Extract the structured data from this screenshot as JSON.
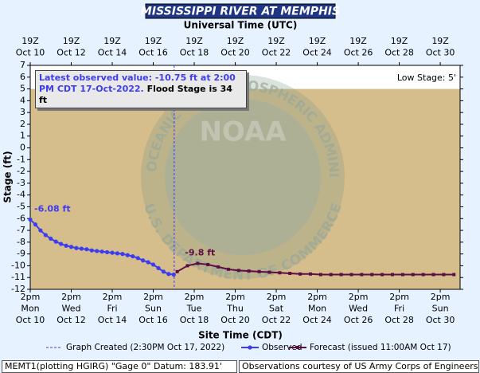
{
  "chart_data": {
    "type": "line",
    "title": "MISSISSIPPI RIVER AT MEMPHIS",
    "x2_label": "Universal Time (UTC)",
    "x_label": "Site Time (CDT)",
    "y_label": "Stage (ft)",
    "xlim": [
      10.583,
      31.55
    ],
    "ylim": [
      -12,
      7
    ],
    "yticks": [
      7,
      6,
      5,
      4,
      3,
      2,
      1,
      0,
      -1,
      -2,
      -3,
      -4,
      -5,
      -6,
      -7,
      -8,
      -9,
      -10,
      -11,
      -12
    ],
    "xticks": [
      {
        "value": 10.583,
        "label": "2pm\nMon\nOct 10"
      },
      {
        "value": 12.583,
        "label": "2pm\nWed\nOct 12"
      },
      {
        "value": 14.583,
        "label": "2pm\nFri\nOct 14"
      },
      {
        "value": 16.583,
        "label": "2pm\nSun\nOct 16"
      },
      {
        "value": 18.583,
        "label": "2pm\nTue\nOct 18"
      },
      {
        "value": 20.583,
        "label": "2pm\nThu\nOct 20"
      },
      {
        "value": 22.583,
        "label": "2pm\nSat\nOct 22"
      },
      {
        "value": 24.583,
        "label": "2pm\nMon\nOct 24"
      },
      {
        "value": 26.583,
        "label": "2pm\nWed\nOct 26"
      },
      {
        "value": 28.583,
        "label": "2pm\nFri\nOct 28"
      },
      {
        "value": 30.583,
        "label": "2pm\nSun\nOct 30"
      }
    ],
    "x2ticks": [
      {
        "value": 10.583,
        "label": "19Z\nOct 10"
      },
      {
        "value": 12.583,
        "label": "19Z\nOct 12"
      },
      {
        "value": 14.583,
        "label": "19Z\nOct 14"
      },
      {
        "value": 16.583,
        "label": "19Z\nOct 16"
      },
      {
        "value": 18.583,
        "label": "19Z\nOct 18"
      },
      {
        "value": 20.583,
        "label": "19Z\nOct 20"
      },
      {
        "value": 22.583,
        "label": "19Z\nOct 22"
      },
      {
        "value": 24.583,
        "label": "19Z\nOct 24"
      },
      {
        "value": 26.583,
        "label": "19Z\nOct 26"
      },
      {
        "value": 28.583,
        "label": "19Z\nOct 28"
      },
      {
        "value": 30.583,
        "label": "19Z\nOct 30"
      }
    ],
    "grid": false,
    "band": {
      "from": -12,
      "to": 5,
      "color": "#d6bd8c",
      "label": "Low Stage: 5'"
    },
    "created": {
      "x": 17.604,
      "label": "Graph Created (2:30PM Oct 17, 2022)",
      "color": "#3c3cf0"
    },
    "series": [
      {
        "name": "Observed",
        "color": "#3c3cf0",
        "marker": "circle",
        "x": [
          10.583,
          10.833,
          11.083,
          11.333,
          11.583,
          11.833,
          12.083,
          12.333,
          12.583,
          12.833,
          13.083,
          13.333,
          13.583,
          13.833,
          14.083,
          14.333,
          14.583,
          14.833,
          15.083,
          15.333,
          15.583,
          15.833,
          16.083,
          16.333,
          16.583,
          16.833,
          17.083,
          17.333,
          17.583
        ],
        "values": [
          -6.08,
          -6.5,
          -7.0,
          -7.4,
          -7.7,
          -7.95,
          -8.15,
          -8.3,
          -8.4,
          -8.5,
          -8.55,
          -8.6,
          -8.7,
          -8.75,
          -8.8,
          -8.85,
          -8.9,
          -8.95,
          -9.0,
          -9.1,
          -9.2,
          -9.35,
          -9.55,
          -9.7,
          -9.9,
          -10.2,
          -10.5,
          -10.7,
          -10.75
        ],
        "value_labels": [
          "-6.08 ft",
          null,
          null,
          null,
          null,
          null,
          null,
          null,
          null,
          null,
          null,
          null,
          null,
          null,
          null,
          null,
          null,
          null,
          null,
          null,
          null,
          null,
          null,
          null,
          null,
          null,
          null,
          null,
          null
        ]
      },
      {
        "name": "Forecast (issued 11:00AM Oct 17)",
        "color": "#5c0e44",
        "marker": "square",
        "x": [
          17.75,
          18.25,
          18.75,
          19.25,
          19.75,
          20.25,
          20.75,
          21.25,
          21.75,
          22.25,
          22.75,
          23.25,
          23.75,
          24.25,
          24.75,
          25.25,
          25.75,
          26.25,
          26.75,
          27.25,
          27.75,
          28.25,
          28.75,
          29.25,
          29.75,
          30.25,
          30.75,
          31.25
        ],
        "values": [
          -10.5,
          -10.0,
          -9.8,
          -9.9,
          -10.1,
          -10.3,
          -10.4,
          -10.45,
          -10.5,
          -10.55,
          -10.6,
          -10.65,
          -10.7,
          -10.7,
          -10.75,
          -10.75,
          -10.75,
          -10.75,
          -10.75,
          -10.75,
          -10.75,
          -10.75,
          -10.75,
          -10.75,
          -10.75,
          -10.75,
          -10.75,
          -10.75
        ],
        "value_labels": [
          null,
          null,
          "-9.8 ft",
          null,
          null,
          null,
          null,
          null,
          null,
          null,
          null,
          null,
          null,
          null,
          null,
          null,
          null,
          null,
          null,
          null,
          null,
          null,
          null,
          null,
          null,
          null,
          null,
          null
        ]
      }
    ],
    "info_box": {
      "observed": "Latest observed value: -10.75 ft at 2:00 PM CDT 17-Oct-2022.",
      "flood": "Flood Stage is 34 ft"
    },
    "watermark": {
      "center": "NOAA",
      "top": "NATIONAL OCEANIC AND ATMOSPHERIC ADMINISTRATION",
      "bottom": "U.S. DEPARTMENT OF COMMERCE"
    },
    "footer": {
      "left": "MEMT1(plotting HGIRG) \"Gage 0\" Datum: 183.91'",
      "right": "Observations courtesy of US Army Corps of Engineers"
    }
  }
}
